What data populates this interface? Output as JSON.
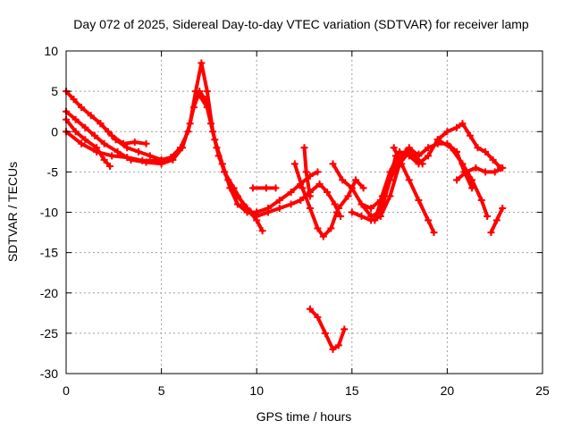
{
  "chart_data": {
    "type": "scatter",
    "title": "Day 072 of 2025, Sidereal Day-to-day VTEC variation (SDTVAR) for receiver lamp",
    "xlabel": "GPS time / hours",
    "ylabel": "SDTVAR / TECUs",
    "xlim": [
      0,
      25
    ],
    "ylim": [
      -30,
      10
    ],
    "xticks": [
      0,
      5,
      10,
      15,
      20,
      25
    ],
    "yticks": [
      -30,
      -25,
      -20,
      -15,
      -10,
      -5,
      0,
      5,
      10
    ],
    "grid": true,
    "color": "#ff0000",
    "series": [
      {
        "name": "track-1",
        "points": [
          [
            0,
            5
          ],
          [
            0.4,
            4
          ],
          [
            0.8,
            3
          ],
          [
            1.3,
            2
          ],
          [
            1.8,
            1
          ],
          [
            2.2,
            0
          ],
          [
            2.6,
            -1
          ],
          [
            3.2,
            -2
          ],
          [
            3.8,
            -2.5
          ],
          [
            4.4,
            -3
          ],
          [
            5,
            -3.5
          ],
          [
            5.5,
            -3.2
          ],
          [
            6,
            -2
          ],
          [
            6.4,
            0
          ],
          [
            6.7,
            3
          ],
          [
            7,
            5
          ],
          [
            7.3,
            4
          ],
          [
            7.6,
            1
          ],
          [
            7.9,
            -2
          ],
          [
            8.3,
            -5
          ],
          [
            8.8,
            -7
          ],
          [
            9.3,
            -9
          ],
          [
            9.7,
            -10
          ],
          [
            10,
            -10
          ]
        ]
      },
      {
        "name": "track-2",
        "points": [
          [
            0,
            2.5
          ],
          [
            0.5,
            1.5
          ],
          [
            1,
            0.5
          ],
          [
            1.5,
            -0.5
          ],
          [
            2,
            -1.5
          ],
          [
            2.7,
            -2.5
          ],
          [
            3.4,
            -3.5
          ],
          [
            4.2,
            -3.8
          ],
          [
            5,
            -4
          ],
          [
            5.6,
            -3.5
          ],
          [
            6.1,
            -2
          ],
          [
            6.5,
            1
          ],
          [
            6.8,
            5
          ],
          [
            7.1,
            8.5
          ],
          [
            7.4,
            5
          ],
          [
            7.7,
            0
          ],
          [
            8,
            -3
          ],
          [
            8.5,
            -6
          ],
          [
            9,
            -8
          ],
          [
            9.5,
            -9.5
          ],
          [
            10,
            -11
          ],
          [
            10.3,
            -12.3
          ]
        ]
      },
      {
        "name": "track-3",
        "points": [
          [
            0,
            1.5
          ],
          [
            0.5,
            0
          ],
          [
            1,
            -1
          ],
          [
            1.6,
            -2
          ],
          [
            2,
            -3.5
          ],
          [
            2.3,
            -4.3
          ]
        ]
      },
      {
        "name": "track-4",
        "points": [
          [
            1.8,
            1
          ],
          [
            2.4,
            -0.5
          ],
          [
            3,
            -1.5
          ],
          [
            3.6,
            -1.3
          ],
          [
            4.2,
            -1.5
          ]
        ]
      },
      {
        "name": "track-5",
        "points": [
          [
            0,
            0
          ],
          [
            0.8,
            -1.5
          ],
          [
            1.6,
            -2.5
          ],
          [
            2.4,
            -3
          ],
          [
            3.2,
            -3.2
          ],
          [
            4,
            -3.6
          ],
          [
            5,
            -3.6
          ]
        ]
      },
      {
        "name": "track-6",
        "points": [
          [
            7,
            4.5
          ],
          [
            7.4,
            3
          ],
          [
            7.8,
            -1
          ],
          [
            8.2,
            -4
          ],
          [
            8.6,
            -7
          ],
          [
            9,
            -9
          ],
          [
            9.5,
            -10
          ],
          [
            10,
            -10.3
          ]
        ]
      },
      {
        "name": "track-7",
        "points": [
          [
            10,
            -10
          ],
          [
            10.6,
            -9.5
          ],
          [
            11.2,
            -8.5
          ],
          [
            11.8,
            -7.5
          ],
          [
            12.3,
            -6.5
          ],
          [
            12.8,
            -5.5
          ],
          [
            13.2,
            -5
          ]
        ]
      },
      {
        "name": "track-8",
        "points": [
          [
            10,
            -10.5
          ],
          [
            10.6,
            -10
          ],
          [
            11.2,
            -9.5
          ],
          [
            11.8,
            -9
          ],
          [
            12.3,
            -8.5
          ],
          [
            12.8,
            -7.5
          ],
          [
            13.3,
            -6.5
          ],
          [
            13.7,
            -7.5
          ],
          [
            14.1,
            -9
          ],
          [
            14.4,
            -10.5
          ]
        ]
      },
      {
        "name": "track-9",
        "points": [
          [
            9.8,
            -7
          ],
          [
            10.5,
            -7
          ],
          [
            11,
            -7
          ]
        ]
      },
      {
        "name": "track-10",
        "points": [
          [
            12,
            -4
          ],
          [
            12.4,
            -7
          ],
          [
            12.8,
            -9.5
          ],
          [
            13.2,
            -12
          ],
          [
            13.5,
            -13
          ],
          [
            13.9,
            -12
          ],
          [
            14.2,
            -10
          ]
        ]
      },
      {
        "name": "track-11",
        "points": [
          [
            12.5,
            -2
          ],
          [
            12.6,
            -5
          ],
          [
            12.8,
            -8
          ]
        ]
      },
      {
        "name": "track-12",
        "points": [
          [
            14,
            -4
          ],
          [
            14.5,
            -6
          ],
          [
            15,
            -7
          ],
          [
            15.5,
            -9
          ],
          [
            16,
            -10.5
          ],
          [
            16.5,
            -10
          ],
          [
            17,
            -6
          ],
          [
            17.3,
            -3
          ],
          [
            17.8,
            -2.5
          ],
          [
            18.3,
            -3
          ],
          [
            18.7,
            -4
          ]
        ]
      },
      {
        "name": "track-13",
        "points": [
          [
            14.3,
            -9.5
          ],
          [
            14.8,
            -8
          ],
          [
            15.2,
            -6
          ],
          [
            15.6,
            -7
          ]
        ]
      },
      {
        "name": "track-14",
        "points": [
          [
            15,
            -10
          ],
          [
            15.5,
            -10.5
          ],
          [
            16,
            -11
          ],
          [
            16.5,
            -10.5
          ],
          [
            17,
            -8
          ],
          [
            17.5,
            -4
          ],
          [
            18,
            -2.5
          ],
          [
            18.5,
            -2.8
          ]
        ]
      },
      {
        "name": "track-15",
        "points": [
          [
            16.2,
            -11
          ],
          [
            16.6,
            -8
          ],
          [
            17,
            -6
          ],
          [
            17.5,
            -3.5
          ],
          [
            18,
            -2
          ],
          [
            18.5,
            -3
          ],
          [
            19,
            -2
          ],
          [
            19.5,
            -1.5
          ],
          [
            20,
            -1.5
          ],
          [
            20.5,
            -2.5
          ],
          [
            20.9,
            -5
          ],
          [
            21.3,
            -7
          ]
        ]
      },
      {
        "name": "track-16",
        "points": [
          [
            15.5,
            -9
          ],
          [
            16,
            -9.5
          ],
          [
            16.5,
            -8.5
          ],
          [
            17,
            -5
          ],
          [
            17.5,
            -2.5
          ],
          [
            18,
            -3
          ],
          [
            18.5,
            -4
          ],
          [
            19,
            -3
          ],
          [
            19.5,
            -1
          ],
          [
            20,
            0
          ],
          [
            20.5,
            0.5
          ],
          [
            20.8,
            1
          ],
          [
            21.2,
            -0.5
          ],
          [
            21.6,
            -2
          ],
          [
            22,
            -2.5
          ],
          [
            22.4,
            -3.5
          ],
          [
            22.8,
            -4.5
          ]
        ]
      },
      {
        "name": "track-17",
        "points": [
          [
            17.2,
            -2
          ],
          [
            17.6,
            -4
          ],
          [
            18,
            -6
          ],
          [
            18.5,
            -8.5
          ],
          [
            19,
            -11
          ],
          [
            19.3,
            -12.5
          ]
        ]
      },
      {
        "name": "track-18",
        "points": [
          [
            19.5,
            -1
          ],
          [
            20.2,
            -2
          ],
          [
            20.8,
            -4
          ],
          [
            21.3,
            -6
          ],
          [
            21.8,
            -8.5
          ],
          [
            22.1,
            -10.5
          ]
        ]
      },
      {
        "name": "track-19",
        "points": [
          [
            20.5,
            -6
          ],
          [
            21,
            -5
          ],
          [
            21.5,
            -4.5
          ],
          [
            22,
            -5
          ],
          [
            22.5,
            -5
          ],
          [
            22.9,
            -4.5
          ]
        ]
      },
      {
        "name": "track-20",
        "points": [
          [
            22.3,
            -12.5
          ],
          [
            22.6,
            -11
          ],
          [
            22.9,
            -9.5
          ]
        ]
      },
      {
        "name": "track-21",
        "points": [
          [
            12.8,
            -22
          ],
          [
            13.2,
            -23
          ],
          [
            13.6,
            -25
          ],
          [
            14,
            -27
          ],
          [
            14.3,
            -26.5
          ],
          [
            14.6,
            -24.5
          ]
        ]
      }
    ]
  }
}
